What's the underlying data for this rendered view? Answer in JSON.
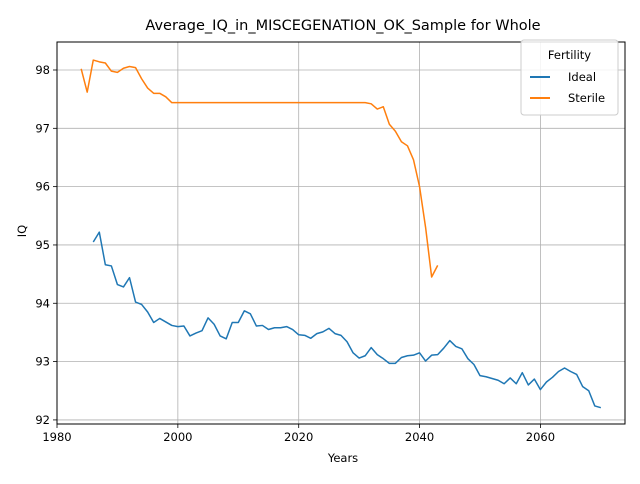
{
  "chart_data": {
    "type": "line",
    "title": "Average_IQ_in_MISCEGENATION_OK_Sample for Whole",
    "xlabel": "Years",
    "ylabel": "IQ",
    "xlim": [
      1980,
      2074
    ],
    "ylim": [
      91.93,
      98.48
    ],
    "xticks": [
      1980,
      2000,
      2020,
      2040,
      2060
    ],
    "yticks": [
      92,
      93,
      94,
      95,
      96,
      97,
      98
    ],
    "grid": true,
    "legend": {
      "title": "Fertility",
      "position": "top-right"
    },
    "series": [
      {
        "name": "Ideal",
        "color": "#1f77b4",
        "x": [
          1986,
          1987,
          1988,
          1989,
          1990,
          1991,
          1992,
          1993,
          1994,
          1995,
          1996,
          1997,
          1998,
          1999,
          2000,
          2001,
          2002,
          2003,
          2004,
          2005,
          2006,
          2007,
          2008,
          2009,
          2010,
          2011,
          2012,
          2013,
          2014,
          2015,
          2016,
          2017,
          2018,
          2019,
          2020,
          2021,
          2022,
          2023,
          2024,
          2025,
          2026,
          2027,
          2028,
          2029,
          2030,
          2031,
          2032,
          2033,
          2034,
          2035,
          2036,
          2037,
          2038,
          2039,
          2040,
          2041,
          2042,
          2043,
          2044,
          2045,
          2046,
          2047,
          2048,
          2049,
          2050,
          2051,
          2052,
          2053,
          2054,
          2055,
          2056,
          2057,
          2058,
          2059,
          2060,
          2061,
          2062,
          2063,
          2064,
          2065,
          2066,
          2067,
          2068,
          2069,
          2070
        ],
        "y": [
          95.05,
          95.22,
          94.66,
          94.64,
          94.32,
          94.28,
          94.44,
          94.02,
          93.98,
          93.85,
          93.67,
          93.74,
          93.68,
          93.62,
          93.6,
          93.61,
          93.44,
          93.49,
          93.53,
          93.75,
          93.64,
          93.44,
          93.39,
          93.67,
          93.67,
          93.87,
          93.82,
          93.61,
          93.62,
          93.55,
          93.58,
          93.58,
          93.6,
          93.55,
          93.46,
          93.45,
          93.4,
          93.48,
          93.51,
          93.57,
          93.48,
          93.45,
          93.34,
          93.15,
          93.06,
          93.1,
          93.24,
          93.12,
          93.05,
          92.97,
          92.97,
          93.07,
          93.1,
          93.11,
          93.15,
          93.01,
          93.11,
          93.12,
          93.23,
          93.36,
          93.26,
          93.22,
          93.05,
          92.95,
          92.76,
          92.74,
          92.71,
          92.68,
          92.62,
          92.72,
          92.62,
          92.81,
          92.6,
          92.7,
          92.52,
          92.65,
          92.73,
          92.83,
          92.89,
          92.83,
          92.78,
          92.57,
          92.5,
          92.24,
          92.21
        ]
      },
      {
        "name": "Sterile",
        "color": "#ff7f0e",
        "x": [
          1984,
          1985,
          1986,
          1987,
          1988,
          1989,
          1990,
          1991,
          1992,
          1993,
          1994,
          1995,
          1996,
          1997,
          1998,
          1999,
          2000,
          2005,
          2010,
          2015,
          2020,
          2025,
          2030,
          2031,
          2032,
          2033,
          2034,
          2035,
          2036,
          2037,
          2038,
          2039,
          2040,
          2041,
          2042,
          2043
        ],
        "y": [
          98.02,
          97.62,
          98.17,
          98.14,
          98.12,
          97.98,
          97.96,
          98.03,
          98.06,
          98.04,
          97.85,
          97.69,
          97.6,
          97.6,
          97.54,
          97.44,
          97.44,
          97.44,
          97.44,
          97.44,
          97.44,
          97.44,
          97.44,
          97.44,
          97.42,
          97.33,
          97.37,
          97.07,
          96.95,
          96.77,
          96.7,
          96.46,
          96.0,
          95.3,
          94.45,
          94.65
        ]
      }
    ]
  }
}
